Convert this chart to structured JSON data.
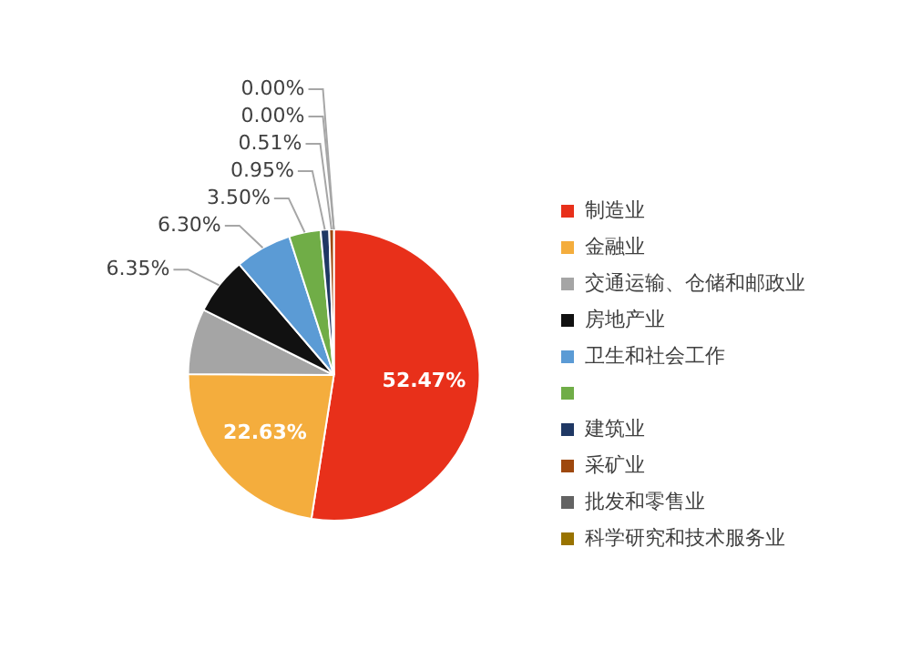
{
  "chart_data": {
    "type": "pie",
    "categories": [
      "制造业",
      "金融业",
      "交通运输、仓储和邮政业",
      "房地产业",
      "卫生和社会工作",
      null,
      "建筑业",
      "采矿业",
      "批发和零售业",
      "科学研究和技术服务业"
    ],
    "values": [
      52.47,
      22.63,
      7.29,
      6.35,
      6.3,
      3.5,
      0.95,
      0.51,
      0.0,
      0.0
    ],
    "colors": [
      "#e8301a",
      "#f4ad3d",
      "#a5a5a5",
      "#111111",
      "#5b9bd5",
      "#70ad47",
      "#1f3864",
      "#9e480e",
      "#636363",
      "#997300"
    ],
    "value_labels": [
      "52.47%",
      "22.63%",
      null,
      "6.35%",
      "6.30%",
      "3.50%",
      "0.95%",
      "0.51%",
      "0.00%",
      "0.00%"
    ],
    "legend": "right"
  }
}
